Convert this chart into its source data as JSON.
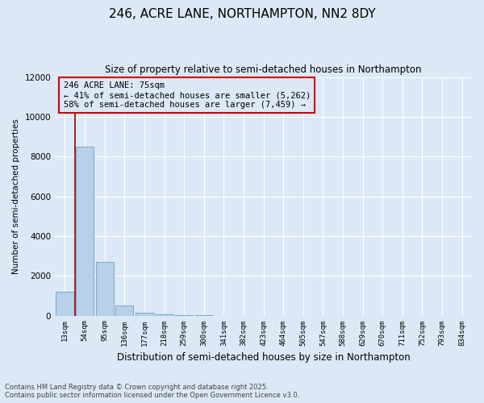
{
  "title1": "246, ACRE LANE, NORTHAMPTON, NN2 8DY",
  "title2": "Size of property relative to semi-detached houses in Northampton",
  "xlabel": "Distribution of semi-detached houses by size in Northampton",
  "ylabel": "Number of semi-detached properties",
  "categories": [
    "13sqm",
    "54sqm",
    "95sqm",
    "136sqm",
    "177sqm",
    "218sqm",
    "259sqm",
    "300sqm",
    "341sqm",
    "382sqm",
    "423sqm",
    "464sqm",
    "505sqm",
    "547sqm",
    "588sqm",
    "629sqm",
    "670sqm",
    "711sqm",
    "752sqm",
    "793sqm",
    "834sqm"
  ],
  "values": [
    1200,
    8500,
    2700,
    500,
    150,
    60,
    5,
    3,
    2,
    1,
    1,
    0,
    0,
    0,
    0,
    0,
    0,
    0,
    0,
    0,
    0
  ],
  "bar_color": "#b8d0e8",
  "bar_edge_color": "#6aa0c8",
  "ylim": [
    0,
    12000
  ],
  "yticks": [
    0,
    2000,
    4000,
    6000,
    8000,
    10000,
    12000
  ],
  "annotation_text": "246 ACRE LANE: 75sqm\n← 41% of semi-detached houses are smaller (5,262)\n58% of semi-detached houses are larger (7,459) →",
  "vline_x": 0.5,
  "vline_color": "#990000",
  "annotation_box_edgecolor": "#cc0000",
  "footnote1": "Contains HM Land Registry data © Crown copyright and database right 2025.",
  "footnote2": "Contains public sector information licensed under the Open Government Licence v3.0.",
  "bg_color": "#dce8f5"
}
